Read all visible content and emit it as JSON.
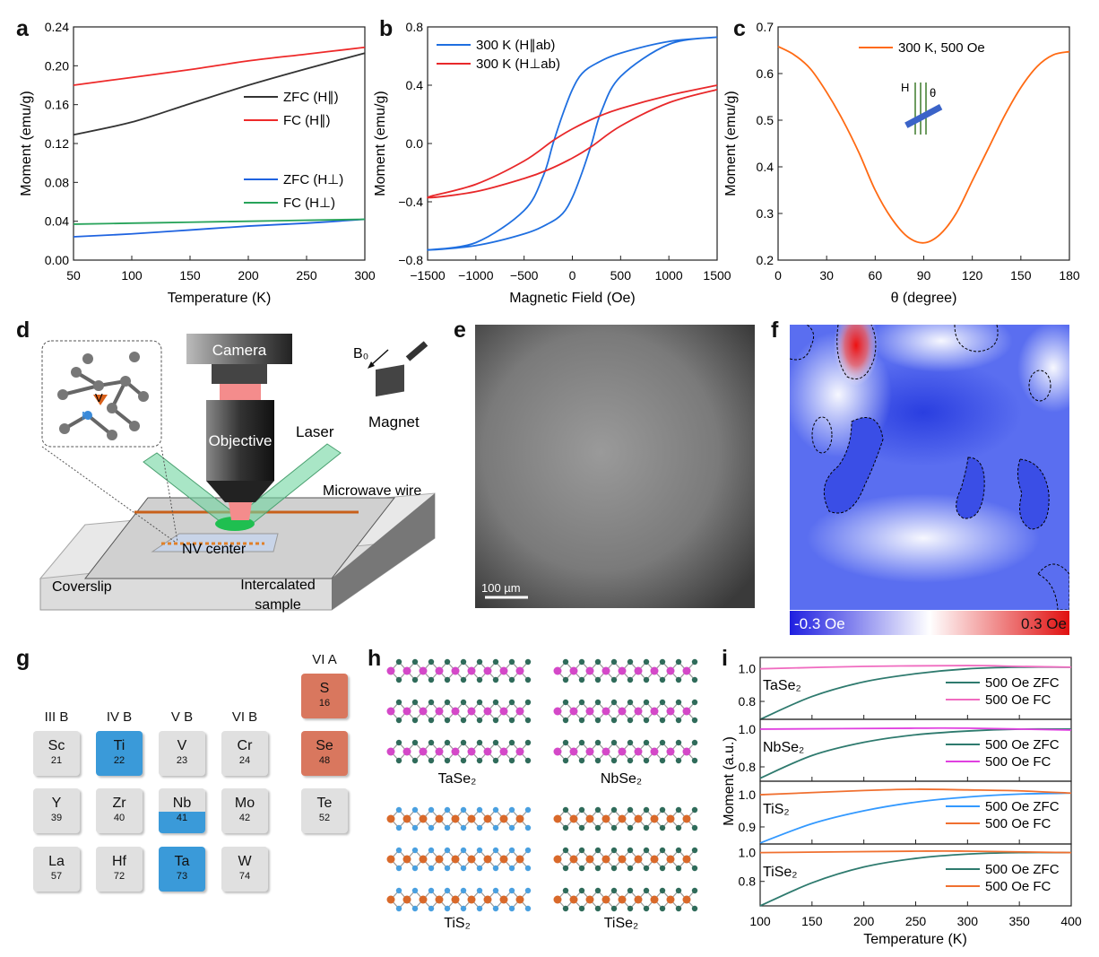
{
  "panel_labels": {
    "a": "a",
    "b": "b",
    "c": "c",
    "d": "d",
    "e": "e",
    "f": "f",
    "g": "g",
    "h": "h",
    "i": "i"
  },
  "chart_data": [
    {
      "panel": "a",
      "type": "line",
      "xlabel": "Temperature (K)",
      "ylabel": "Moment (emu/g)",
      "xlim": [
        50,
        300
      ],
      "ylim": [
        0,
        0.24
      ],
      "xticks": [
        "50",
        "100",
        "150",
        "200",
        "250",
        "300"
      ],
      "yticks": [
        "0.00",
        "0.04",
        "0.08",
        "0.12",
        "0.16",
        "0.20",
        "0.24"
      ],
      "grid": false,
      "legend": "right",
      "series": [
        {
          "name": "ZFC (H∥)",
          "color": "#333333",
          "x": [
            50,
            100,
            150,
            200,
            250,
            300
          ],
          "y": [
            0.129,
            0.142,
            0.161,
            0.18,
            0.197,
            0.213
          ]
        },
        {
          "name": "FC (H∥)",
          "color": "#ee2a2a",
          "x": [
            50,
            100,
            150,
            200,
            250,
            300
          ],
          "y": [
            0.18,
            0.188,
            0.196,
            0.205,
            0.212,
            0.219
          ]
        },
        {
          "name": "ZFC (H⊥)",
          "color": "#1f63e0",
          "x": [
            50,
            100,
            150,
            200,
            250,
            300
          ],
          "y": [
            0.024,
            0.027,
            0.031,
            0.035,
            0.038,
            0.042
          ]
        },
        {
          "name": "FC (H⊥)",
          "color": "#27a35a",
          "x": [
            50,
            100,
            150,
            200,
            250,
            300
          ],
          "y": [
            0.037,
            0.038,
            0.039,
            0.04,
            0.041,
            0.042
          ]
        }
      ]
    },
    {
      "panel": "b",
      "type": "line",
      "xlabel": "Magnetic Field (Oe)",
      "ylabel": "Moment (emu/g)",
      "xlim": [
        -1500,
        1500
      ],
      "ylim": [
        -0.8,
        0.8
      ],
      "xticks": [
        "−1500",
        "−1000",
        "−500",
        "0",
        "500",
        "1000",
        "1500"
      ],
      "yticks": [
        "−0.8",
        "−0.4",
        "0.0",
        "0.4",
        "0.8"
      ],
      "grid": false,
      "legend": "top-left",
      "series": [
        {
          "name": "300 K (H∥ab)",
          "color": "#1f6fe0",
          "x": [
            1500,
            1000,
            500,
            250,
            100,
            0,
            -100,
            -200,
            -300,
            -500,
            -1000,
            -1500,
            -1000,
            -500,
            -250,
            -100,
            0,
            100,
            200,
            300,
            500,
            1000,
            1500
          ],
          "y": [
            0.73,
            0.7,
            0.62,
            0.55,
            0.48,
            0.37,
            0.2,
            0.0,
            -0.22,
            -0.46,
            -0.68,
            -0.73,
            -0.7,
            -0.62,
            -0.55,
            -0.48,
            -0.37,
            -0.2,
            0.0,
            0.22,
            0.46,
            0.68,
            0.73
          ]
        },
        {
          "name": "300 K (H⊥ab)",
          "color": "#e8282a",
          "x": [
            1500,
            1000,
            500,
            250,
            0,
            -200,
            -500,
            -1000,
            -1500,
            -1000,
            -500,
            -250,
            0,
            200,
            500,
            1000,
            1500
          ],
          "y": [
            0.4,
            0.33,
            0.24,
            0.18,
            0.1,
            0.02,
            -0.12,
            -0.28,
            -0.37,
            -0.33,
            -0.24,
            -0.18,
            -0.1,
            -0.02,
            0.12,
            0.28,
            0.37
          ]
        }
      ]
    },
    {
      "panel": "c",
      "type": "line",
      "xlabel": "θ (degree)",
      "ylabel": "Moment (emu/g)",
      "xlim": [
        0,
        180
      ],
      "ylim": [
        0.2,
        0.7
      ],
      "xticks": [
        "0",
        "30",
        "60",
        "90",
        "120",
        "150",
        "180"
      ],
      "yticks": [
        "0.2",
        "0.3",
        "0.4",
        "0.5",
        "0.6",
        "0.7"
      ],
      "grid": false,
      "legend": "top-center",
      "inset_labels": {
        "field": "H",
        "angle": "θ"
      },
      "series": [
        {
          "name": "300 K, 500 Oe",
          "color": "#ff6a13",
          "x": [
            0,
            10,
            20,
            30,
            40,
            50,
            60,
            70,
            80,
            90,
            100,
            110,
            120,
            130,
            140,
            150,
            160,
            170,
            180
          ],
          "y": [
            0.658,
            0.64,
            0.61,
            0.56,
            0.5,
            0.43,
            0.35,
            0.29,
            0.25,
            0.237,
            0.255,
            0.3,
            0.37,
            0.44,
            0.51,
            0.57,
            0.615,
            0.64,
            0.647
          ]
        }
      ]
    },
    {
      "panel": "i",
      "type": "line",
      "xlabel": "Temperature (K)",
      "ylabel": "Moment (a.u.)",
      "xlim": [
        100,
        400
      ],
      "xticks": [
        "100",
        "150",
        "200",
        "250",
        "300",
        "350",
        "400"
      ],
      "grid": false,
      "legend": "right",
      "subplots": [
        {
          "label": "TaSe₂",
          "ylim": [
            0.69,
            1.07
          ],
          "yticks": [
            "0.8",
            "1.0"
          ],
          "series": [
            {
              "name": "500 Oe ZFC",
              "color": "#2e7a6e",
              "x": [
                100,
                150,
                200,
                250,
                300,
                350,
                400
              ],
              "y": [
                0.69,
                0.83,
                0.92,
                0.97,
                1.0,
                1.01,
                1.01
              ]
            },
            {
              "name": "500 Oe FC",
              "color": "#f06cc0",
              "x": [
                100,
                200,
                300,
                350,
                400
              ],
              "y": [
                1.0,
                1.015,
                1.02,
                1.015,
                1.01
              ]
            }
          ]
        },
        {
          "label": "NbSe₂",
          "ylim": [
            0.724,
            1.052
          ],
          "yticks": [
            "0.8",
            "1.0"
          ],
          "series": [
            {
              "name": "500 Oe ZFC",
              "color": "#2e7a6e",
              "x": [
                100,
                150,
                200,
                250,
                300,
                350,
                400
              ],
              "y": [
                0.74,
                0.86,
                0.93,
                0.97,
                0.99,
                1.0,
                1.0
              ]
            },
            {
              "name": "500 Oe FC",
              "color": "#e040e0",
              "x": [
                100,
                250,
                300,
                400
              ],
              "y": [
                1.0,
                1.005,
                1.005,
                0.995
              ]
            }
          ]
        },
        {
          "label": "TiS₂",
          "ylim": [
            0.847,
            1.042
          ],
          "yticks": [
            "0.9",
            "1.0"
          ],
          "series": [
            {
              "name": "500 Oe ZFC",
              "color": "#3399ff",
              "x": [
                100,
                150,
                200,
                250,
                300,
                350,
                400
              ],
              "y": [
                0.85,
                0.91,
                0.95,
                0.977,
                0.993,
                1.002,
                1.005
              ]
            },
            {
              "name": "500 Oe FC",
              "color": "#f07030",
              "x": [
                100,
                200,
                250,
                300,
                350,
                400
              ],
              "y": [
                1.0,
                1.013,
                1.017,
                1.015,
                1.012,
                1.005
              ]
            }
          ]
        },
        {
          "label": "TiSe₂",
          "ylim": [
            0.63,
            1.06
          ],
          "yticks": [
            "0.8",
            "1.0"
          ],
          "series": [
            {
              "name": "500 Oe ZFC",
              "color": "#2e7a6e",
              "x": [
                100,
                150,
                200,
                250,
                300,
                350,
                400
              ],
              "y": [
                0.63,
                0.79,
                0.9,
                0.96,
                0.99,
                1.0,
                1.0
              ]
            },
            {
              "name": "500 Oe FC",
              "color": "#f07030",
              "x": [
                100,
                250,
                300,
                400
              ],
              "y": [
                1.0,
                1.01,
                1.01,
                1.0
              ]
            }
          ]
        }
      ]
    }
  ],
  "schematic_d": {
    "camera": "Camera",
    "objective": "Objective",
    "laser": "Laser",
    "field": "B₀",
    "magnet": "Magnet",
    "microwave_wire": "Microwave wire",
    "nv_center": "NV center",
    "coverslip": "Coverslip",
    "sample_line1": "Intercalated",
    "sample_line2": "sample",
    "atom_v": "V",
    "atom_n": "N"
  },
  "image_e": {
    "scale_bar": "100 µm"
  },
  "map_f": {
    "colorbar_min": "-0.3 Oe",
    "colorbar_max": "0.3 Oe",
    "colormap": [
      "#1f1fe0",
      "#ffffff",
      "#e01010"
    ]
  },
  "periodic_g": {
    "headers": [
      "III B",
      "IV B",
      "V B",
      "VI B",
      "VI A"
    ],
    "colors": {
      "default": "#e0e0e0",
      "metal": "#3a9ad9",
      "chalcogen": "#d9775e"
    },
    "elements": [
      {
        "symbol": "Sc",
        "number": "21",
        "hl": "none"
      },
      {
        "symbol": "Ti",
        "number": "22",
        "hl": "metal"
      },
      {
        "symbol": "V",
        "number": "23",
        "hl": "none"
      },
      {
        "symbol": "Cr",
        "number": "24",
        "hl": "none"
      },
      {
        "symbol": "Y",
        "number": "39",
        "hl": "none"
      },
      {
        "symbol": "Zr",
        "number": "40",
        "hl": "none"
      },
      {
        "symbol": "Nb",
        "number": "41",
        "hl": "half"
      },
      {
        "symbol": "Mo",
        "number": "42",
        "hl": "none"
      },
      {
        "symbol": "La",
        "number": "57",
        "hl": "none"
      },
      {
        "symbol": "Hf",
        "number": "72",
        "hl": "none"
      },
      {
        "symbol": "Ta",
        "number": "73",
        "hl": "metal"
      },
      {
        "symbol": "W",
        "number": "74",
        "hl": "none"
      },
      {
        "symbol": "S",
        "number": "16",
        "hl": "chalcogen"
      },
      {
        "symbol": "Se",
        "number": "48",
        "hl": "chalcogen"
      },
      {
        "symbol": "Te",
        "number": "52",
        "hl": "none"
      }
    ]
  },
  "structures_h": [
    {
      "label": "TaSe₂",
      "metal_color": "#d448c8",
      "chalcogen_color": "#2f6b5a"
    },
    {
      "label": "NbSe₂",
      "metal_color": "#d448c8",
      "chalcogen_color": "#2f6b5a"
    },
    {
      "label": "TiS₂",
      "metal_color": "#d9692a",
      "chalcogen_color": "#4aa0e0"
    },
    {
      "label": "TiSe₂",
      "metal_color": "#d9692a",
      "chalcogen_color": "#2f6b5a"
    }
  ]
}
